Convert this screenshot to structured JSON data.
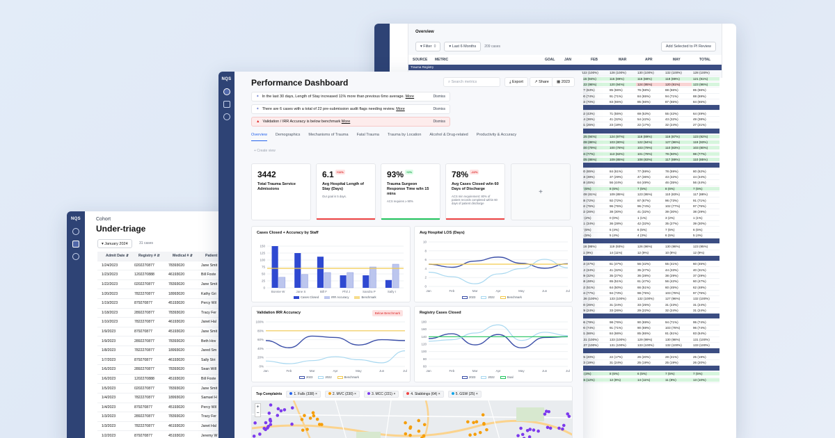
{
  "app": {
    "logo": "NQS"
  },
  "back": {
    "title": "Overview",
    "filter": "Filter",
    "filter_count": "0",
    "range": "Last 6 Months",
    "cases": "209 cases",
    "add_button": "Add Selected to PI Review",
    "headers": [
      "SOURCE",
      "METRIC",
      "GOAL",
      "JAN",
      "FEB",
      "MAR",
      "APR",
      "MAY",
      "TOTAL"
    ],
    "section": "Trauma Registry",
    "rows": [
      {
        "c": [
          "122 (100%)",
          "128 (100%)",
          "130 (100%)",
          "132 (100%)",
          "128 (100%)"
        ],
        "g": 0
      },
      {
        "c": [
          "115 (94%)",
          "115 (89%)",
          "115 (88%)",
          "118 (89%)",
          "121 (91%)"
        ],
        "g": 1
      },
      {
        "c": [
          "122 (98%)",
          "120 (94%)",
          "124 (95%)",
          "120 (91%)",
          "123 (96%)"
        ],
        "g": 1
      },
      {
        "c": [
          "77 (63%)",
          "85 (66%)",
          "76 (58%)",
          "88 (66%)",
          "85 (66%)"
        ],
        "g": 0
      },
      {
        "c": [
          "90 (74%)",
          "91 (71%)",
          "84 (65%)",
          "94 (71%)",
          "88 (69%)"
        ],
        "g": 0
      },
      {
        "c": [
          "83 (70%)",
          "83 (65%)",
          "85 (66%)",
          "87 (65%)",
          "84 (65%)"
        ],
        "g": 0
      },
      {
        "sep": 1
      },
      {
        "c": [
          "52 (43%)",
          "71 (55%)",
          "69 (53%)",
          "55 (42%)",
          "64 (49%)"
        ],
        "g": 0
      },
      {
        "c": [
          "44 (36%)",
          "41 (32%)",
          "54 (42%)",
          "43 (32%)",
          "49 (38%)"
        ],
        "g": 0
      },
      {
        "c": [
          "31 (25%)",
          "23 (18%)",
          "22 (17%)",
          "32 (24%)",
          "27 (21%)"
        ],
        "g": 0
      },
      {
        "sep": 1
      },
      {
        "c": [
          "125 (94%)",
          "124 (97%)",
          "116 (89%)",
          "116 (87%)",
          "123 (92%)"
        ],
        "g": 1
      },
      {
        "c": [
          "108 (88%)",
          "103 (80%)",
          "122 (94%)",
          "127 (96%)",
          "119 (93%)"
        ],
        "g": 1
      },
      {
        "c": [
          "100 (79%)",
          "100 (78%)",
          "103 (79%)",
          "110 (83%)",
          "103 (80%)"
        ],
        "g": 1
      },
      {
        "c": [
          "94 (77%)",
          "113 (82%)",
          "101 (78%)",
          "79 (60%)",
          "98 (77%)"
        ],
        "g": 1
      },
      {
        "c": [
          "105 (86%)",
          "109 (85%)",
          "108 (83%)",
          "117 (89%)",
          "110 (85%)"
        ],
        "g": 1
      },
      {
        "sep": 1
      },
      {
        "c": [
          "80 (65%)",
          "84 (61%)",
          "77 (59%)",
          "78 (59%)",
          "80 (62%)"
        ],
        "g": 0
      },
      {
        "c": [
          "48 (39%)",
          "37 (29%)",
          "47 (36%)",
          "43 (32%)",
          "44 (34%)"
        ],
        "g": 0
      },
      {
        "c": [
          "58 (45%)",
          "56 (44%)",
          "64 (49%)",
          "46 (35%)",
          "56 (44%)"
        ],
        "g": 0
      },
      {
        "c": [
          "7 (6%)",
          "8 (6%)",
          "7 (5%)",
          "8 (6%)",
          "7 (5%)"
        ],
        "g": 1
      },
      {
        "c": [
          "108 (81%)",
          "109 (85%)",
          "123 (95%)",
          "110 (83%)",
          "117 (88%)"
        ],
        "g": 0
      },
      {
        "c": [
          "88 (72%)",
          "92 (72%)",
          "87 (67%)",
          "96 (73%)",
          "91 (71%)"
        ],
        "g": 0
      },
      {
        "c": [
          "92 (75%)",
          "96 (75%)",
          "96 (74%)",
          "102 (77%)",
          "97 (75%)"
        ],
        "g": 0
      },
      {
        "c": [
          "32 (26%)",
          "38 (30%)",
          "41 (32%)",
          "39 (30%)",
          "38 (29%)"
        ],
        "g": 0
      },
      {
        "c": [
          "2 (2%)",
          "0 (0%)",
          "1 (1%)",
          "3 (2%)",
          "1 (1%)"
        ],
        "g": 0
      },
      {
        "c": [
          "41 (34%)",
          "36 (28%)",
          "42 (32%)",
          "35 (27%)",
          "39 (30%)"
        ],
        "g": 0
      },
      {
        "c": [
          "7 (6%)",
          "5 (4%)",
          "6 (5%)",
          "7 (5%)",
          "6 (5%)"
        ],
        "g": 0
      },
      {
        "c": [
          "6 (5%)",
          "5 (4%)",
          "4 (3%)",
          "6 (5%)",
          "5 (4%)"
        ],
        "g": 0
      },
      {
        "sep": 1
      },
      {
        "c": [
          "116 (95%)",
          "119 (93%)",
          "126 (96%)",
          "130 (98%)",
          "123 (95%)"
        ],
        "g": 0
      },
      {
        "c": [
          "11 (9%)",
          "14 (11%)",
          "12 (9%)",
          "10 (8%)",
          "12 (9%)"
        ],
        "g": 0
      },
      {
        "sep": 1
      },
      {
        "c": [
          "63 (47%)",
          "61 (47%)",
          "56 (42%)",
          "55 (41%)",
          "60 (45%)"
        ],
        "g": 0
      },
      {
        "c": [
          "42 (34%)",
          "41 (32%)",
          "35 (27%)",
          "44 (33%)",
          "40 (31%)"
        ],
        "g": 0
      },
      {
        "c": [
          "39 (32%)",
          "35 (27%)",
          "36 (28%)",
          "38 (29%)",
          "37 (29%)"
        ],
        "g": 0
      },
      {
        "c": [
          "58 (48%)",
          "65 (51%)",
          "61 (47%)",
          "56 (42%)",
          "60 (47%)"
        ],
        "g": 0
      },
      {
        "c": [
          "62 (51%)",
          "64 (50%)",
          "66 (51%)",
          "60 (45%)",
          "62 (48%)"
        ],
        "g": 0
      },
      {
        "c": [
          "94 (77%)",
          "94 (73%)",
          "98 (75%)",
          "103 (78%)",
          "97 (75%)"
        ],
        "g": 0
      },
      {
        "c": [
          "136 (100%)",
          "133 (100%)",
          "132 (100%)",
          "127 (96%)",
          "132 (100%)"
        ],
        "g": 0
      },
      {
        "c": [
          "30 (25%)",
          "31 (24%)",
          "33 (25%)",
          "31 (23%)",
          "31 (24%)"
        ],
        "g": 0
      },
      {
        "c": [
          "29 (24%)",
          "33 (26%)",
          "29 (22%)",
          "32 (24%)",
          "31 (24%)"
        ],
        "g": 0
      },
      {
        "sep": 1
      },
      {
        "c": [
          "96 (79%)",
          "98 (76%)",
          "90 (69%)",
          "94 (71%)",
          "95 (74%)"
        ],
        "g": 0
      },
      {
        "c": [
          "90 (74%)",
          "91 (71%)",
          "90 (69%)",
          "103 (78%)",
          "96 (74%)"
        ],
        "g": 0
      },
      {
        "c": [
          "81 (66%)",
          "84 (66%)",
          "85 (65%)",
          "81 (61%)",
          "83 (64%)"
        ],
        "g": 0
      },
      {
        "c": [
          "131 (100%)",
          "133 (100%)",
          "129 (99%)",
          "130 (98%)",
          "131 (100%)"
        ],
        "g": 0
      },
      {
        "c": [
          "137 (100%)",
          "131 (100%)",
          "133 (100%)",
          "132 (100%)",
          "133 (100%)"
        ],
        "g": 0
      },
      {
        "sep": 1
      },
      {
        "c": [
          "25 (20%)",
          "22 (17%)",
          "26 (20%)",
          "28 (21%)",
          "25 (19%)"
        ],
        "g": 0
      },
      {
        "c": [
          "23 (19%)",
          "31 (24%)",
          "25 (19%)",
          "25 (19%)",
          "26 (20%)"
        ],
        "g": 0
      },
      {
        "sep": 1
      },
      {
        "c": [
          "5 (4%)",
          "8 (6%)",
          "6 (5%)",
          "7 (5%)",
          "7 (5%)"
        ],
        "g": 1
      },
      {
        "c": [
          "15 (12%)",
          "12 (9%)",
          "14 (11%)",
          "11 (8%)",
          "13 (10%)"
        ],
        "g": 1
      }
    ]
  },
  "dashboard": {
    "title": "Performance Dashboard",
    "search_placeholder": "Search metrics",
    "export": "Export",
    "share": "Share",
    "year": "2023",
    "alerts": [
      {
        "text": "In the last 30 days, Length of Stay increased 11% more than previous 6mo average.",
        "more": "More",
        "dismiss": "Dismiss"
      },
      {
        "text": "There are 6 cases with a total of 22 pre-submission audit flags needing review.",
        "more": "More",
        "dismiss": "Dismiss"
      },
      {
        "text": "Validation / IRR Accuracy is below benchmark",
        "more": "More",
        "dismiss": "Dismiss"
      }
    ],
    "tabs": [
      "Overview",
      "Demographics",
      "Mechanisms of Trauma",
      "Fatal Trauma",
      "Trauma by Location",
      "Alcohol & Drug-related",
      "Productivity & Accuracy"
    ],
    "create_view": "+ Create view",
    "kpis": [
      {
        "value": "3442",
        "badge": "",
        "label": "Total Trauma Service Admissions",
        "sub": "",
        "bar": ""
      },
      {
        "value": "6.1",
        "badge": "+11%",
        "label": "Avg Hospital Length of Stay (Days)",
        "sub": "Our goal is 5 days.",
        "bar": "#ef4444"
      },
      {
        "value": "93%",
        "badge": "+2%",
        "label": "Trauma Surgeon Response Time w/in 15 mins",
        "sub": "ACS requires ≥ 90%",
        "bar": "#22c55e"
      },
      {
        "value": "78%",
        "badge": "-22%",
        "label": "Avg Cases Closed w/in 60 Days of Discharge",
        "sub": "ACS min requirement: 80% of patient records completed within 60 days of patient discharge",
        "bar": "#ef4444"
      }
    ],
    "add_kpi": "+",
    "charts": [
      {
        "title": "Cases Closed + Accuracy by Staff",
        "legend": [
          "Cases Closed",
          "IRR Accuracy",
          "Benchmark"
        ]
      },
      {
        "title": "Avg Hospital LOS (Days)",
        "legend": [
          "2023",
          "2022",
          "Benchmark"
        ]
      },
      {
        "title": "Validation IRR Accuracy",
        "badge": "Below Benchmark",
        "legend": [
          "2023",
          "2022",
          "Benchmark"
        ]
      },
      {
        "title": "Registry Cases Closed",
        "legend": [
          "2023",
          "2022",
          "Goal"
        ]
      }
    ],
    "map": {
      "title": "Top Complaints",
      "tags": [
        {
          "label": "1. Falls (338)",
          "color": "#2563eb"
        },
        {
          "label": "2. MVC (230)",
          "color": "#f59e0b"
        },
        {
          "label": "3. MCC (221)",
          "color": "#7c3aed"
        },
        {
          "label": "4. Stabbings (64)",
          "color": "#ef4444"
        },
        {
          "label": "5. GSW (25)",
          "color": "#0ea5e9"
        }
      ],
      "zoom_in": "+",
      "zoom_out": "−"
    }
  },
  "chart_data": [
    {
      "type": "bar",
      "title": "Cases Closed + Accuracy by Staff",
      "categories": [
        "Bonnie W",
        "Jane S",
        "Bill F",
        "Phil J",
        "Sandra P",
        "Sally I"
      ],
      "yticks": [
        "150",
        "125",
        "100",
        "75",
        "50",
        "25",
        "0"
      ],
      "ylim": [
        0,
        150
      ],
      "series": [
        {
          "name": "Cases Closed",
          "values": [
            150,
            125,
            112,
            45,
            45,
            28
          ]
        },
        {
          "name": "IRR Accuracy",
          "values": [
            38,
            48,
            55,
            55,
            75,
            85
          ]
        },
        {
          "name": "Benchmark",
          "values": [
            70,
            70,
            70,
            70,
            70,
            70
          ]
        }
      ]
    },
    {
      "type": "line",
      "title": "Avg Hospital LOS (Days)",
      "x": [
        "Jan",
        "Feb",
        "Mar",
        "Apr",
        "May",
        "Jun",
        "Jul"
      ],
      "yticks": [
        "10",
        "8",
        "6",
        "4",
        "2",
        "0"
      ],
      "ylim": [
        0,
        10
      ],
      "series": [
        {
          "name": "2023",
          "values": [
            5.0,
            4.3,
            5.7,
            6.6,
            5.2,
            4.1,
            5.1
          ]
        },
        {
          "name": "2022",
          "values": [
            3.2,
            2.2,
            0.6,
            2.8,
            4.0,
            6.1,
            4.2
          ]
        },
        {
          "name": "Benchmark",
          "values": [
            5,
            5,
            5,
            5,
            5,
            5,
            5
          ]
        }
      ]
    },
    {
      "type": "line",
      "title": "Validation IRR Accuracy",
      "x": [
        "Jan",
        "Feb",
        "Mar",
        "Apr",
        "May",
        "Jun",
        "Jul"
      ],
      "yticks": [
        "100%",
        "80%",
        "60%",
        "40%",
        "20%",
        "0%"
      ],
      "ylim": [
        0,
        100
      ],
      "series": [
        {
          "name": "2023",
          "values": [
            58,
            42,
            68,
            65,
            48,
            60,
            58
          ]
        },
        {
          "name": "2022",
          "values": [
            12,
            6,
            13,
            22,
            15,
            8,
            35
          ]
        },
        {
          "name": "Benchmark",
          "values": [
            80,
            80,
            80,
            80,
            80,
            80,
            80
          ]
        }
      ]
    },
    {
      "type": "line",
      "title": "Registry Cases Closed",
      "x": [
        "Jan",
        "Feb",
        "Mar",
        "Apr",
        "May",
        "Jun",
        "Jul"
      ],
      "yticks": [
        "180",
        "160",
        "140",
        "120",
        "100",
        "80",
        "60"
      ],
      "ylim": [
        60,
        180
      ],
      "series": [
        {
          "name": "2023",
          "values": [
            135,
            148,
            118,
            146,
            110,
            138,
            140
          ]
        },
        {
          "name": "2022",
          "values": [
            128,
            132,
            150,
            172,
            130,
            152,
            143
          ]
        },
        {
          "name": "Goal",
          "values": [
            140,
            140,
            140,
            140,
            140,
            140,
            140
          ]
        }
      ]
    }
  ],
  "cohort": {
    "label": "Cohort",
    "title": "Under-triage",
    "month": "January 2024",
    "cases": "31 cases",
    "headers": [
      "Admit Date",
      "Registry #",
      "Medical #",
      "Patient Na"
    ],
    "rows": [
      [
        "1/24/2023",
        "0202270877",
        "78393020",
        "Jane Smit"
      ],
      [
        "1/23/2023",
        "1202270888",
        "46193020",
        "Bill Foste"
      ],
      [
        "1/22/2023",
        "0202270877",
        "78393020",
        "Jane Smit"
      ],
      [
        "1/20/2023",
        "7822270877",
        "18993020",
        "Kathy Gri"
      ],
      [
        "1/19/2023",
        "879270877",
        "45193020",
        "Percy Wil"
      ],
      [
        "1/18/2023",
        "2892270877",
        "78393020",
        "Tracy Fer"
      ],
      [
        "1/10/2023",
        "7822270877",
        "46193020",
        "Janet Hal"
      ],
      [
        "1/9/2023",
        "879270877",
        "45193020",
        "Jane Smit"
      ],
      [
        "1/9/2023",
        "2892270877",
        "78393020",
        "Beth Hov"
      ],
      [
        "1/8/2023",
        "7822270877",
        "18993020",
        "Jared Sm"
      ],
      [
        "1/7/2023",
        "879270877",
        "46193020",
        "Sally Stri"
      ],
      [
        "1/6/2023",
        "2892270877",
        "78393020",
        "Sean Will"
      ],
      [
        "1/6/2023",
        "1202270888",
        "45193020",
        "Bill Foste"
      ],
      [
        "1/5/2023",
        "0202270877",
        "78393020",
        "Jane Smit"
      ],
      [
        "1/4/2023",
        "7822270877",
        "18993020",
        "Samuel H"
      ],
      [
        "1/4/2023",
        "879270877",
        "45193020",
        "Percy Wil"
      ],
      [
        "1/3/2023",
        "2892270877",
        "78393020",
        "Tracy Fer"
      ],
      [
        "1/3/2023",
        "7822270877",
        "46193020",
        "Janet Hal"
      ],
      [
        "1/2/2023",
        "879270877",
        "45193020",
        "Jeremy W"
      ]
    ]
  }
}
